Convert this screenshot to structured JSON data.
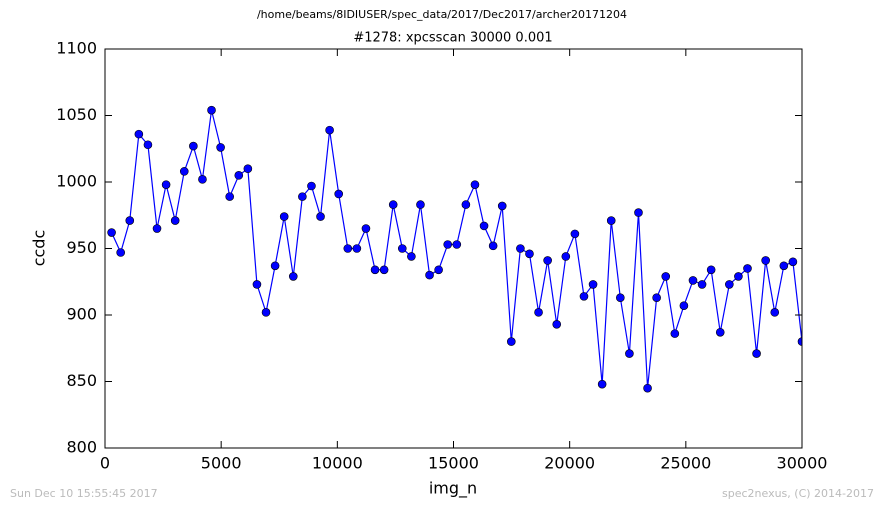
{
  "chart_data": {
    "type": "line",
    "suptitle": "/home/beams/8IDIUSER/spec_data/2017/Dec2017/archer20171204",
    "title": "#1278: xpcsscan 30000 0.001",
    "xlabel": "img_n",
    "ylabel": "ccdc",
    "footer_left": "Sun Dec 10 15:55:45 2017",
    "footer_right": "spec2nexus, (C) 2014-2017",
    "x": [
      284,
      675,
      1066,
      1457,
      1848,
      2239,
      2630,
      3021,
      3412,
      3803,
      4194,
      4585,
      4976,
      5367,
      5758,
      6149,
      6540,
      6931,
      7322,
      7713,
      8104,
      8495,
      8886,
      9277,
      9668,
      10059,
      10450,
      10841,
      11232,
      11623,
      12014,
      12405,
      12796,
      13187,
      13578,
      13969,
      14360,
      14751,
      15142,
      15533,
      15924,
      16315,
      16706,
      17097,
      17488,
      17879,
      18270,
      18661,
      19052,
      19443,
      19834,
      20225,
      20616,
      21007,
      21398,
      21789,
      22180,
      22571,
      22962,
      23353,
      23744,
      24135,
      24526,
      24917,
      25308,
      25699,
      26090,
      26481,
      26872,
      27263,
      27654,
      28045,
      28436,
      28827,
      29218,
      29609,
      30000
    ],
    "series": [
      {
        "color": "#0000ff",
        "values": [
          962,
          947,
          971,
          1036,
          1028,
          965,
          998,
          971,
          1008,
          1027,
          1002,
          1054,
          1026,
          989,
          1005,
          1010,
          923,
          902,
          937,
          974,
          929,
          989,
          997,
          974,
          1039,
          991,
          950,
          950,
          965,
          934,
          934,
          983,
          950,
          944,
          983,
          930,
          934,
          953,
          953,
          983,
          998,
          967,
          952,
          982,
          880,
          950,
          946,
          902,
          941,
          893,
          944,
          961,
          914,
          923,
          848,
          971,
          913,
          871,
          977,
          845,
          913,
          929,
          886,
          907,
          926,
          923,
          934,
          887,
          923,
          929,
          935,
          871,
          941,
          902,
          937,
          940,
          880
        ]
      }
    ],
    "xlim": [
      0,
      30000
    ],
    "xticks": [
      0,
      5000,
      10000,
      15000,
      20000,
      25000,
      30000
    ],
    "ylim": [
      800,
      1100
    ],
    "yticks": [
      800,
      850,
      900,
      950,
      1000,
      1050,
      1100
    ],
    "grid": false
  }
}
